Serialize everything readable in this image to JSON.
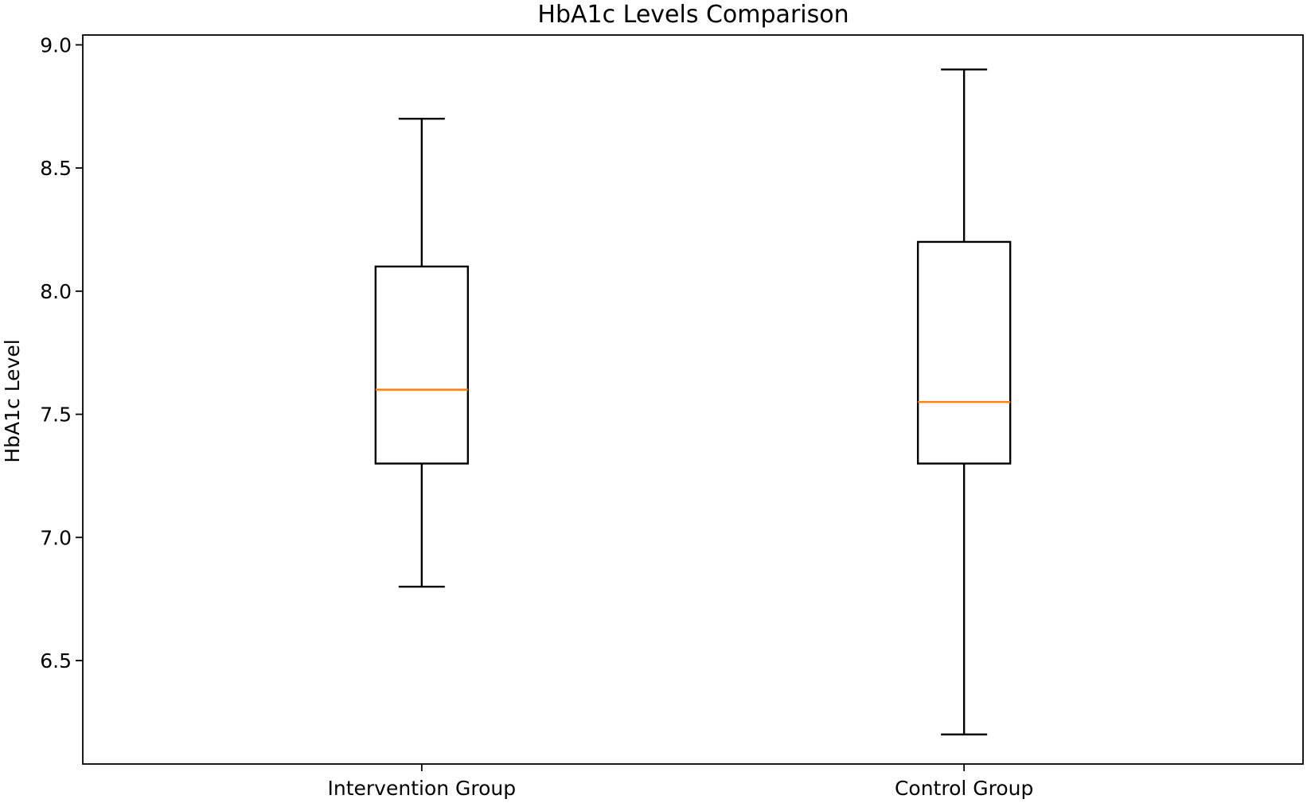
{
  "chart_data": {
    "type": "box",
    "title": "HbA1c Levels Comparison",
    "xlabel": "",
    "ylabel": "HbA1c Level",
    "ylim": [
      6.08,
      9.04
    ],
    "yticks": [
      6.5,
      7.0,
      7.5,
      8.0,
      8.5,
      9.0
    ],
    "ytick_labels": [
      "6.5",
      "7.0",
      "7.5",
      "8.0",
      "8.5",
      "9.0"
    ],
    "grid": false,
    "legend": "none",
    "categories": [
      "Intervention Group",
      "Control Group"
    ],
    "boxes": [
      {
        "category": "Intervention Group",
        "min": 6.8,
        "q1": 7.3,
        "median": 7.6,
        "q3": 8.1,
        "max": 8.7
      },
      {
        "category": "Control Group",
        "min": 6.2,
        "q1": 7.3,
        "median": 7.55,
        "q3": 8.2,
        "max": 8.9
      }
    ],
    "colors": {
      "box": "#000000",
      "median": "#ff7f0e"
    }
  }
}
